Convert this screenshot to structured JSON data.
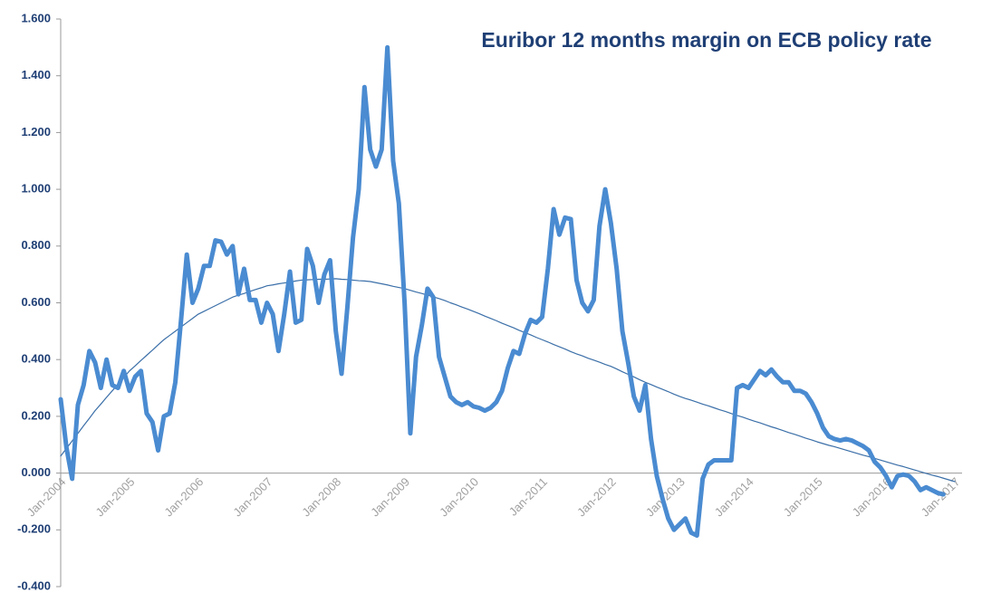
{
  "chart_data": {
    "type": "line",
    "title": "Euribor 12 months margin on ECB policy rate",
    "categories": [
      "Jan-2004",
      null,
      null,
      null,
      null,
      null,
      null,
      null,
      null,
      null,
      null,
      null,
      "Jan-2005",
      null,
      null,
      null,
      null,
      null,
      null,
      null,
      null,
      null,
      null,
      null,
      "Jan-2006",
      null,
      null,
      null,
      null,
      null,
      null,
      null,
      null,
      null,
      null,
      null,
      "Jan-2007",
      null,
      null,
      null,
      null,
      null,
      null,
      null,
      null,
      null,
      null,
      null,
      "Jan-2008",
      null,
      null,
      null,
      null,
      null,
      null,
      null,
      null,
      null,
      null,
      null,
      "Jan-2009",
      null,
      null,
      null,
      null,
      null,
      null,
      null,
      null,
      null,
      null,
      null,
      "Jan-2010",
      null,
      null,
      null,
      null,
      null,
      null,
      null,
      null,
      null,
      null,
      null,
      "Jan-2011",
      null,
      null,
      null,
      null,
      null,
      null,
      null,
      null,
      null,
      null,
      null,
      "Jan-2012",
      null,
      null,
      null,
      null,
      null,
      null,
      null,
      null,
      null,
      null,
      null,
      "Jan-2013",
      null,
      null,
      null,
      null,
      null,
      null,
      null,
      null,
      null,
      null,
      null,
      "Jan-2014",
      null,
      null,
      null,
      null,
      null,
      null,
      null,
      null,
      null,
      null,
      null,
      "Jan-2015",
      null,
      null,
      null,
      null,
      null,
      null,
      null,
      null,
      null,
      null,
      null,
      "Jan-2016",
      null,
      null,
      null,
      null,
      null,
      null,
      null,
      null,
      null,
      null,
      null,
      "Jan-2017"
    ],
    "series": [
      {
        "color": "#4a8bd1",
        "values": [
          0.26,
          0.09,
          -0.02,
          0.24,
          0.31,
          0.43,
          0.39,
          0.3,
          0.4,
          0.31,
          0.3,
          0.36,
          0.29,
          0.34,
          0.36,
          0.21,
          0.18,
          0.08,
          0.2,
          0.21,
          0.32,
          0.54,
          0.77,
          0.6,
          0.65,
          0.73,
          0.73,
          0.82,
          0.815,
          0.77,
          0.8,
          0.63,
          0.72,
          0.61,
          0.61,
          0.53,
          0.6,
          0.56,
          0.43,
          0.56,
          0.71,
          0.53,
          0.54,
          0.79,
          0.73,
          0.6,
          0.7,
          0.75,
          0.5,
          0.35,
          0.58,
          0.83,
          1.0,
          1.36,
          1.14,
          1.08,
          1.14,
          1.5,
          1.1,
          0.95,
          0.6,
          0.14,
          0.41,
          0.52,
          0.65,
          0.62,
          0.41,
          0.34,
          0.27,
          0.25,
          0.24,
          0.25,
          0.235,
          0.23,
          0.22,
          0.23,
          0.25,
          0.29,
          0.37,
          0.43,
          0.42,
          0.49,
          0.54,
          0.53,
          0.55,
          0.72,
          0.93,
          0.84,
          0.9,
          0.895,
          0.68,
          0.6,
          0.57,
          0.61,
          0.87,
          1.0,
          0.88,
          0.72,
          0.5,
          0.39,
          0.27,
          0.22,
          0.31,
          0.12,
          -0.01,
          -0.09,
          -0.16,
          -0.2,
          -0.18,
          -0.16,
          -0.21,
          -0.22,
          -0.02,
          0.03,
          0.045,
          0.045,
          0.045,
          0.045,
          0.3,
          0.31,
          0.3,
          0.33,
          0.36,
          0.345,
          0.365,
          0.34,
          0.32,
          0.32,
          0.29,
          0.29,
          0.28,
          0.25,
          0.21,
          0.16,
          0.13,
          0.12,
          0.115,
          0.12,
          0.115,
          0.105,
          0.095,
          0.08,
          0.04,
          0.02,
          -0.01,
          -0.05,
          -0.01,
          -0.005,
          -0.01,
          -0.03,
          -0.06,
          -0.05,
          -0.06,
          -0.07,
          -0.075,
          null,
          null
        ]
      },
      {
        "color": "#3b6fa8",
        "trendline": true,
        "values": [
          0.06,
          0.087,
          0.113,
          0.14,
          0.167,
          0.193,
          0.22,
          0.243,
          0.267,
          0.29,
          0.313,
          0.337,
          0.36,
          0.378,
          0.397,
          0.415,
          0.433,
          0.452,
          0.47,
          0.485,
          0.5,
          0.515,
          0.53,
          0.545,
          0.56,
          0.57,
          0.58,
          0.59,
          0.6,
          0.61,
          0.62,
          0.627,
          0.633,
          0.64,
          0.647,
          0.653,
          0.66,
          0.663,
          0.667,
          0.67,
          0.673,
          0.677,
          0.68,
          0.681,
          0.682,
          0.683,
          0.683,
          0.684,
          0.685,
          0.683,
          0.682,
          0.68,
          0.678,
          0.677,
          0.675,
          0.671,
          0.667,
          0.663,
          0.658,
          0.654,
          0.65,
          0.644,
          0.638,
          0.633,
          0.627,
          0.621,
          0.615,
          0.608,
          0.6,
          0.593,
          0.585,
          0.578,
          0.57,
          0.562,
          0.553,
          0.545,
          0.537,
          0.528,
          0.52,
          0.512,
          0.503,
          0.495,
          0.487,
          0.478,
          0.47,
          0.462,
          0.453,
          0.445,
          0.437,
          0.428,
          0.42,
          0.413,
          0.405,
          0.398,
          0.391,
          0.383,
          0.376,
          0.367,
          0.357,
          0.348,
          0.339,
          0.329,
          0.32,
          0.312,
          0.303,
          0.295,
          0.287,
          0.278,
          0.27,
          0.263,
          0.257,
          0.25,
          0.243,
          0.237,
          0.23,
          0.223,
          0.217,
          0.21,
          0.203,
          0.197,
          0.19,
          0.183,
          0.177,
          0.17,
          0.163,
          0.157,
          0.15,
          0.143,
          0.137,
          0.13,
          0.123,
          0.117,
          0.11,
          0.104,
          0.098,
          0.093,
          0.087,
          0.081,
          0.075,
          0.069,
          0.063,
          0.058,
          0.052,
          0.046,
          0.04,
          0.034,
          0.028,
          0.023,
          0.017,
          0.011,
          0.005,
          -0.001,
          -0.007,
          -0.012,
          -0.018,
          -0.024,
          -0.03
        ]
      }
    ],
    "ylim": [
      -0.4,
      1.6
    ],
    "yticks": [
      {
        "value": -0.4,
        "label": "-0.400"
      },
      {
        "value": -0.2,
        "label": "-0.200"
      },
      {
        "value": 0,
        "label": "0.000"
      },
      {
        "value": 0.2,
        "label": "0.200"
      },
      {
        "value": 0.4,
        "label": "0.400"
      },
      {
        "value": 0.6,
        "label": "0.600"
      },
      {
        "value": 0.8,
        "label": "0.800"
      },
      {
        "value": 1,
        "label": "1.000"
      },
      {
        "value": 1.2,
        "label": "1.200"
      },
      {
        "value": 1.4,
        "label": "1.400"
      },
      {
        "value": 1.6,
        "label": "1.600"
      }
    ],
    "grid": false
  }
}
